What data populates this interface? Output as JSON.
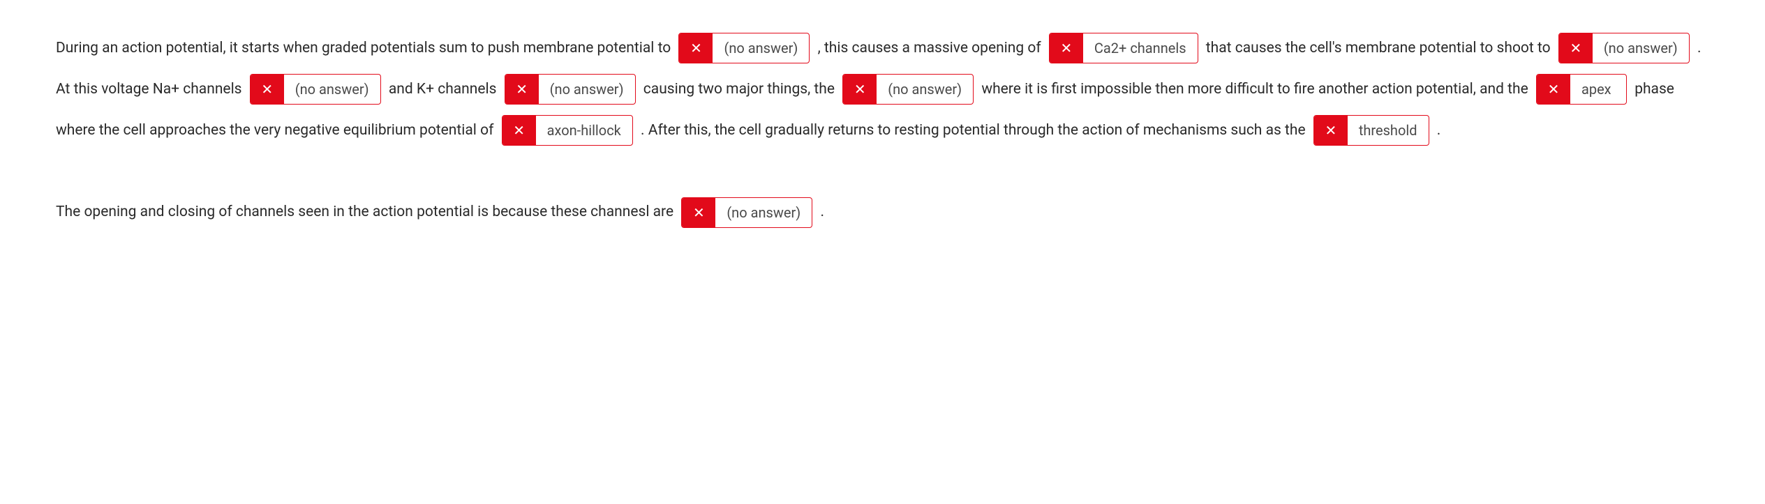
{
  "colors": {
    "incorrect_bg": "#e20a1a",
    "incorrect_border": "#e20a1a",
    "text": "#2a2a2a",
    "answer_text": "#4a4a4a",
    "background": "#ffffff"
  },
  "x_symbol": "✕",
  "text": {
    "t1": "During an action potential, it starts when graded potentials sum to push membrane potential to ",
    "t2": ", this causes a massive opening of ",
    "t3": " that causes the cell's membrane potential to shoot to ",
    "t4": ". At this voltage Na+ channels ",
    "t5": " and K+ channels ",
    "t6": " causing two major things, the ",
    "t7": " where it is first impossible then more difficult to fire another action potential, and the ",
    "t8": " phase where the cell approaches the very negative equilibrium potential of ",
    "t9": ". After this, the cell gradually returns to resting potential through the action of mechanisms such as the ",
    "t10": ".",
    "t11": "The opening and closing of channels seen in the action potential is because these channesl are ",
    "t12": "."
  },
  "answers": {
    "a1": "(no answer)",
    "a2": "Ca2+ channels",
    "a3": "(no answer)",
    "a4": "(no answer)",
    "a5": "(no answer)",
    "a6": "(no answer)",
    "a7": "apex",
    "a8": "axon-hillock",
    "a9": "threshold",
    "a10": "(no answer)"
  }
}
